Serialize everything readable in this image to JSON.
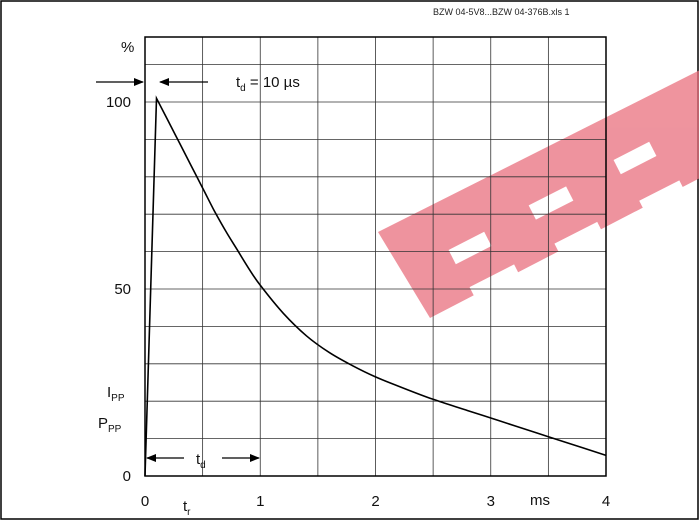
{
  "source_note": "BZW 04-5V8...BZW 04-376B.xls 1",
  "chart_data": {
    "type": "line",
    "title": "",
    "xlabel": "",
    "ylabel": "",
    "x_unit": "ms",
    "y_unit": "%",
    "xlim": [
      0,
      4
    ],
    "ylim": [
      0,
      100
    ],
    "x_ticks": [
      {
        "value": 0,
        "label": "0"
      },
      {
        "value": 1,
        "label": "1"
      },
      {
        "value": 2,
        "label": "2"
      },
      {
        "value": 3,
        "label": "3"
      },
      {
        "value": 4,
        "label": "4"
      }
    ],
    "y_ticks": [
      {
        "value": 0,
        "label": "0"
      },
      {
        "value": 50,
        "label": "50"
      },
      {
        "value": 100,
        "label": "100"
      }
    ],
    "grid": true,
    "series": [
      {
        "color": "#000000",
        "x": [
          0,
          0.1,
          0.2,
          0.3,
          0.4,
          0.5,
          0.6,
          0.7,
          0.8,
          0.9,
          1.0,
          1.2,
          1.4,
          1.6,
          1.8,
          2.0,
          2.2,
          2.5,
          2.8,
          3.0,
          3.2,
          3.5,
          3.8,
          4.0
        ],
        "y": [
          0,
          101,
          95,
          89,
          83,
          77,
          71,
          65.5,
          60.5,
          55.5,
          51,
          43.5,
          37.5,
          33,
          29.5,
          26.5,
          24,
          20.5,
          17.5,
          15.5,
          13.5,
          10.5,
          7.5,
          5.5
        ]
      }
    ],
    "annotations": {
      "td_top": {
        "main": "t",
        "sub": "d",
        "rest": " = 10 µs"
      },
      "ipp": {
        "main": "I",
        "sub": "PP"
      },
      "ppp": {
        "main": "P",
        "sub": "PP"
      },
      "td_bottom": {
        "main": "t",
        "sub": "d"
      },
      "tr": {
        "main": "t",
        "sub": "r"
      }
    }
  }
}
